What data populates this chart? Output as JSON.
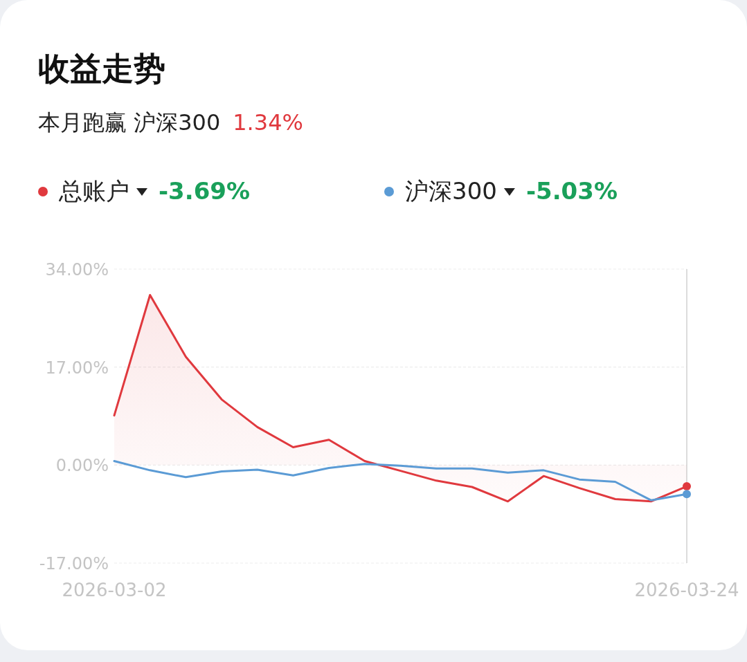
{
  "chart_data": {
    "type": "line",
    "title": "收益走势",
    "subtitle": "本月跑赢 沪深300",
    "annotations": [
      "1.34%",
      "-3.69%",
      "-5.03%"
    ],
    "categories": [
      "2026-03-02",
      null,
      null,
      null,
      null,
      null,
      null,
      null,
      null,
      null,
      null,
      null,
      null,
      null,
      null,
      null,
      "2026-03-24"
    ],
    "series": [
      {
        "name": "总账户",
        "type": "area",
        "color": "#e0393e",
        "values": [
          8.6,
          29.5,
          18.8,
          11.4,
          6.6,
          3.1,
          4.4,
          0.7,
          -1.0,
          -2.7,
          -3.8,
          -6.3,
          -1.9,
          -4.0,
          -5.9,
          -6.3,
          -3.69
        ]
      },
      {
        "name": "沪深300",
        "color": "#5b9bd5",
        "values": [
          0.7,
          -0.9,
          -2.1,
          -1.1,
          -0.8,
          -1.8,
          -0.5,
          0.2,
          -0.1,
          -0.6,
          -0.6,
          -1.3,
          -0.9,
          -2.5,
          -2.9,
          -6.1,
          -5.03
        ]
      }
    ],
    "ylim": [
      -17,
      34
    ],
    "yticks": [
      {
        "value": -17,
        "label": "-17.00%"
      },
      {
        "value": 0,
        "label": "0.00%"
      },
      {
        "value": 17,
        "label": "17.00%"
      },
      {
        "value": 34,
        "label": "34.00%"
      }
    ],
    "grid": "y",
    "legend": "top left"
  }
}
